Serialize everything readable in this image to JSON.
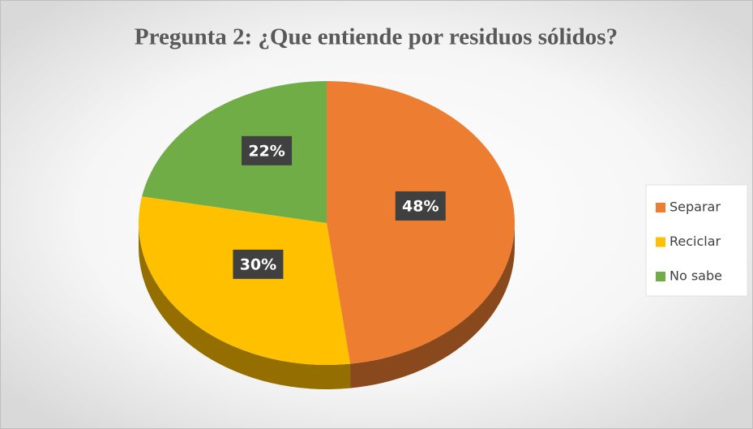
{
  "chart_data": {
    "type": "pie",
    "title": "Pregunta 2: ¿Que entiende por residuos sólidos?",
    "categories": [
      "Separar",
      "Reciclar",
      "No sabe"
    ],
    "values": [
      48,
      30,
      22
    ],
    "value_labels": [
      "48%",
      "30%",
      "22%"
    ],
    "colors": [
      "#ed7d31",
      "#ffc000",
      "#70ad47"
    ],
    "legend": "right"
  }
}
